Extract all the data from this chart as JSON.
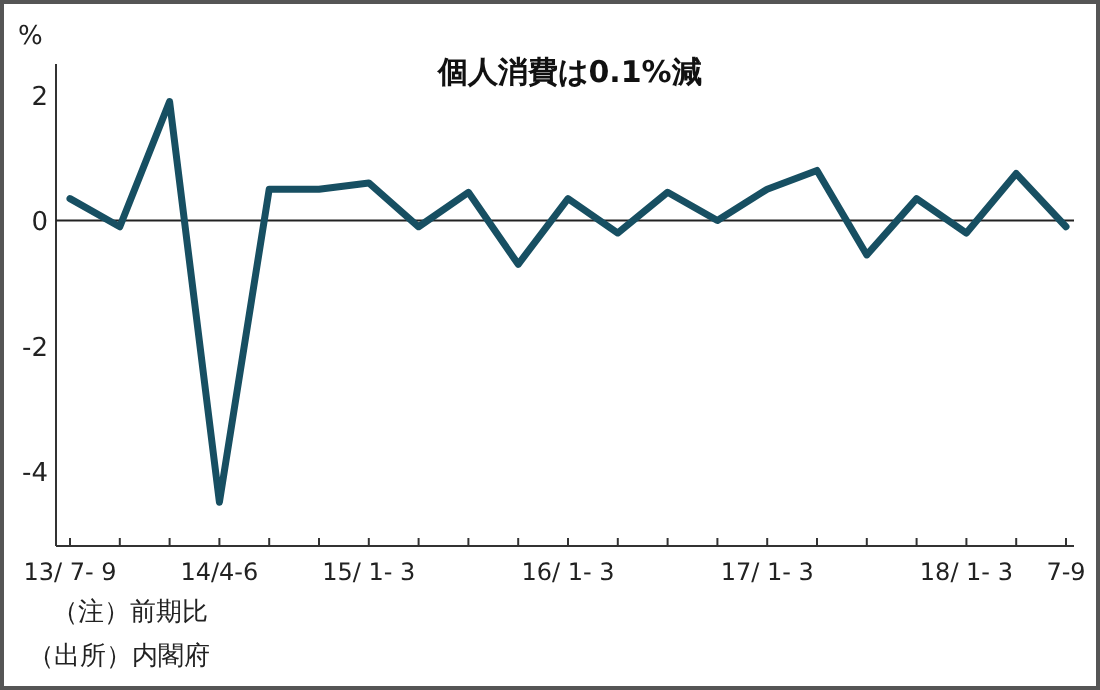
{
  "chart_data": {
    "type": "line",
    "title": "個人消費は0.1%減",
    "ylabel": "%",
    "categories": [
      "13/ 7- 9",
      null,
      null,
      "14/4-6",
      null,
      null,
      "15/ 1- 3",
      null,
      null,
      null,
      "16/ 1- 3",
      null,
      null,
      null,
      "17/ 1- 3",
      null,
      null,
      null,
      "18/ 1- 3",
      null,
      "7-9"
    ],
    "series": [
      {
        "color": "#174f62",
        "values": [
          0.35,
          -0.1,
          1.9,
          -4.5,
          0.5,
          0.5,
          0.6,
          -0.1,
          0.45,
          -0.7,
          0.35,
          -0.2,
          0.45,
          0.0,
          0.5,
          0.8,
          -0.55,
          0.35,
          -0.2,
          0.75,
          -0.1
        ]
      }
    ],
    "ylim": [
      -5.2,
      2.5
    ],
    "yticks": [
      2,
      0,
      -2,
      -4
    ],
    "ref_lines": [
      {
        "axis": "y",
        "value": 0,
        "color": "#222222"
      }
    ],
    "grid": false,
    "marker": "none",
    "line_style": "solid",
    "annotations": [
      "（注）前期比",
      "（出所）内閣府"
    ]
  }
}
